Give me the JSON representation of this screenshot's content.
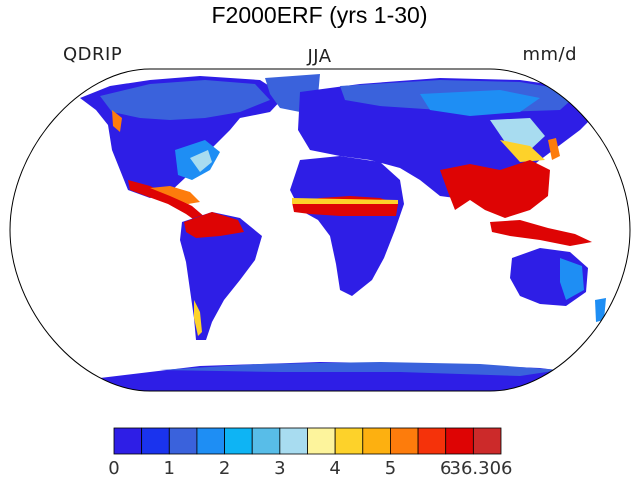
{
  "title": "F2000ERF (yrs 1-30)",
  "left_string": "QDRIP",
  "center_string": "JJA",
  "right_string": "mm/d",
  "colorbar": {
    "colors": [
      "#2e1ee6",
      "#1a33ee",
      "#3a62dc",
      "#1e8ef4",
      "#0eb4f4",
      "#58bde8",
      "#a8dcf0",
      "#fdf49c",
      "#fdd22a",
      "#fdb010",
      "#fd7c0c",
      "#f5320a",
      "#de0404",
      "#cc2a2a"
    ],
    "tick_labels": [
      "0",
      "1",
      "2",
      "3",
      "4",
      "5",
      "6",
      "36.306"
    ]
  },
  "map_colors": {
    "ocean": "#ffffff",
    "land_dry": "#2e1ee6",
    "land_low": "#3a62dc",
    "land_mid": "#1e8ef4",
    "land_light": "#a8dcf0",
    "land_yellow": "#fdd22a",
    "land_orange": "#fd7c0c",
    "land_red": "#de0404",
    "land_wet": "#cc2a2a"
  }
}
